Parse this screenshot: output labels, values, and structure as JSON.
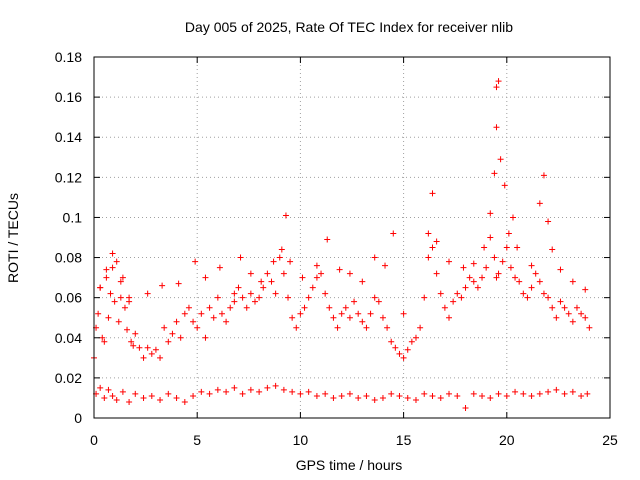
{
  "chart_data": {
    "type": "scatter",
    "title": "Day 005 of 2025, Rate Of TEC Index for receiver nlib",
    "xlabel": "GPS time / hours",
    "ylabel": "ROTI / TECUs",
    "xlim": [
      0,
      25
    ],
    "ylim": [
      0,
      0.18
    ],
    "xticks": [
      "0",
      "5",
      "10",
      "15",
      "20",
      "25"
    ],
    "yticks": [
      "0",
      "0.02",
      "0.04",
      "0.06",
      "0.08",
      "0.1",
      "0.12",
      "0.14",
      "0.16",
      "0.18"
    ],
    "grid": true,
    "marker": "plus",
    "color": "#ff0000",
    "series": [
      {
        "x": [
          0.0,
          0.1,
          0.2,
          0.3,
          0.4,
          0.5,
          0.6,
          0.7,
          0.8,
          0.9,
          1.0,
          1.1,
          1.2,
          1.3,
          1.4,
          1.5,
          1.6,
          1.7,
          1.8,
          1.9,
          2.0,
          2.2,
          2.4,
          2.6,
          2.8,
          3.0,
          3.2,
          3.4,
          3.6,
          3.8,
          4.0,
          4.2,
          4.4,
          4.6,
          4.8,
          5.0,
          5.2,
          5.4,
          5.6,
          5.8,
          6.0,
          6.2,
          6.4,
          6.6,
          6.8,
          7.0,
          7.2,
          7.4,
          7.6,
          7.8,
          8.0,
          8.2,
          8.4,
          8.6,
          8.8,
          9.0,
          9.2,
          9.4,
          9.6,
          9.8,
          10.0,
          10.2,
          10.4,
          10.6,
          10.8,
          11.0,
          11.2,
          11.4,
          11.6,
          11.8,
          12.0,
          12.2,
          12.4,
          12.6,
          12.8,
          13.0,
          13.2,
          13.4,
          13.6,
          13.8,
          14.0,
          14.2,
          14.4,
          14.6,
          14.8,
          15.0,
          15.2,
          15.4,
          15.6,
          15.8,
          16.0,
          16.2,
          16.4,
          16.6,
          16.8,
          17.0,
          17.2,
          17.4,
          17.6,
          17.8,
          18.0,
          18.2,
          18.4,
          18.6,
          18.8,
          19.0,
          19.2,
          19.4,
          19.5,
          19.6,
          19.8,
          20.0,
          20.2,
          20.4,
          20.6,
          20.8,
          21.0,
          21.2,
          21.4,
          21.6,
          21.8,
          22.0,
          22.2,
          22.4,
          22.6,
          22.8,
          23.0,
          23.2,
          23.4,
          23.6,
          23.8,
          24.0,
          0.3,
          0.6,
          0.9,
          1.3,
          1.7,
          2.6,
          3.3,
          4.1,
          4.9,
          5.4,
          6.1,
          6.8,
          7.1,
          7.6,
          8.1,
          8.7,
          9.1,
          9.3,
          9.5,
          10.1,
          10.8,
          11.3,
          11.9,
          12.4,
          13.0,
          13.6,
          14.1,
          14.5,
          15.0,
          16.2,
          16.4,
          16.6,
          17.2,
          17.9,
          18.4,
          18.9,
          19.2,
          19.4,
          19.5,
          19.5,
          19.6,
          19.7,
          19.9,
          20.1,
          20.3,
          20.5,
          21.2,
          21.6,
          21.8,
          22.0,
          22.2,
          22.6,
          23.2,
          23.8
        ],
        "y": [
          0.03,
          0.045,
          0.052,
          0.065,
          0.04,
          0.038,
          0.074,
          0.05,
          0.062,
          0.082,
          0.058,
          0.078,
          0.048,
          0.06,
          0.07,
          0.055,
          0.044,
          0.058,
          0.038,
          0.036,
          0.042,
          0.035,
          0.03,
          0.035,
          0.032,
          0.034,
          0.03,
          0.045,
          0.038,
          0.042,
          0.048,
          0.04,
          0.052,
          0.055,
          0.048,
          0.045,
          0.052,
          0.04,
          0.055,
          0.05,
          0.06,
          0.052,
          0.048,
          0.055,
          0.058,
          0.065,
          0.06,
          0.055,
          0.062,
          0.058,
          0.06,
          0.065,
          0.072,
          0.068,
          0.062,
          0.08,
          0.072,
          0.06,
          0.05,
          0.045,
          0.052,
          0.055,
          0.06,
          0.065,
          0.07,
          0.072,
          0.062,
          0.055,
          0.05,
          0.045,
          0.052,
          0.055,
          0.05,
          0.058,
          0.052,
          0.048,
          0.045,
          0.052,
          0.06,
          0.058,
          0.05,
          0.045,
          0.038,
          0.035,
          0.032,
          0.03,
          0.034,
          0.038,
          0.04,
          0.045,
          0.06,
          0.08,
          0.085,
          0.072,
          0.062,
          0.055,
          0.05,
          0.058,
          0.062,
          0.06,
          0.065,
          0.07,
          0.068,
          0.065,
          0.07,
          0.075,
          0.09,
          0.08,
          0.07,
          0.072,
          0.078,
          0.085,
          0.075,
          0.07,
          0.068,
          0.062,
          0.06,
          0.065,
          0.072,
          0.068,
          0.062,
          0.06,
          0.055,
          0.05,
          0.058,
          0.055,
          0.052,
          0.048,
          0.055,
          0.052,
          0.05,
          0.045,
          0.065,
          0.07,
          0.075,
          0.068,
          0.06,
          0.062,
          0.066,
          0.067,
          0.078,
          0.07,
          0.075,
          0.062,
          0.08,
          0.072,
          0.068,
          0.078,
          0.084,
          0.101,
          0.078,
          0.07,
          0.076,
          0.089,
          0.074,
          0.072,
          0.068,
          0.08,
          0.076,
          0.092,
          0.052,
          0.092,
          0.112,
          0.088,
          0.078,
          0.075,
          0.077,
          0.085,
          0.102,
          0.122,
          0.145,
          0.165,
          0.168,
          0.129,
          0.116,
          0.092,
          0.1,
          0.085,
          0.076,
          0.107,
          0.121,
          0.098,
          0.084,
          0.074,
          0.068,
          0.064
        ]
      },
      {
        "x": [
          0.1,
          0.3,
          0.5,
          0.7,
          0.9,
          1.1,
          1.4,
          1.7,
          2.0,
          2.4,
          2.8,
          3.2,
          3.6,
          4.0,
          4.4,
          4.8,
          5.2,
          5.6,
          6.0,
          6.4,
          6.8,
          7.2,
          7.6,
          8.0,
          8.4,
          8.8,
          9.2,
          9.6,
          10.0,
          10.4,
          10.8,
          11.2,
          11.6,
          12.0,
          12.4,
          12.8,
          13.2,
          13.6,
          14.0,
          14.4,
          14.8,
          15.2,
          15.6,
          16.0,
          16.4,
          16.8,
          17.2,
          17.6,
          18.0,
          18.4,
          18.8,
          19.2,
          19.6,
          20.0,
          20.4,
          20.8,
          21.2,
          21.6,
          22.0,
          22.4,
          22.8,
          23.2,
          23.6,
          23.9
        ],
        "y": [
          0.012,
          0.015,
          0.01,
          0.014,
          0.011,
          0.009,
          0.013,
          0.008,
          0.012,
          0.01,
          0.011,
          0.009,
          0.012,
          0.01,
          0.008,
          0.011,
          0.013,
          0.012,
          0.014,
          0.013,
          0.015,
          0.012,
          0.014,
          0.013,
          0.015,
          0.016,
          0.014,
          0.013,
          0.012,
          0.013,
          0.011,
          0.012,
          0.01,
          0.011,
          0.012,
          0.01,
          0.011,
          0.009,
          0.01,
          0.012,
          0.011,
          0.01,
          0.009,
          0.012,
          0.011,
          0.01,
          0.012,
          0.011,
          0.005,
          0.012,
          0.011,
          0.01,
          0.012,
          0.011,
          0.013,
          0.012,
          0.011,
          0.012,
          0.013,
          0.014,
          0.012,
          0.013,
          0.011,
          0.012
        ]
      }
    ]
  }
}
